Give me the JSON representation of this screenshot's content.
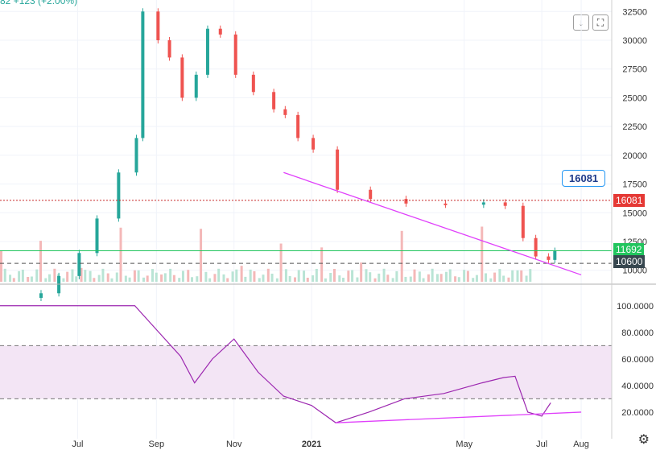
{
  "header": {
    "text": "82  +123 (+2.00%)"
  },
  "toolbar": {
    "arrow_down": "↓",
    "fit": "⛶"
  },
  "callout": {
    "value": "16081"
  },
  "price_labels": [
    {
      "value": "16081",
      "color": "#e53935"
    },
    {
      "value": "11692",
      "color": "#22c55e"
    },
    {
      "value": "10600",
      "color": "#37474f"
    }
  ],
  "chart_data": [
    {
      "type": "candlestick",
      "x": [
        "2020-06-01",
        "2020-06-15",
        "2020-07-01",
        "2020-07-15",
        "2020-08-01",
        "2020-08-15",
        "2020-08-20",
        "2020-09-01",
        "2020-09-10",
        "2020-09-20",
        "2020-10-01",
        "2020-10-10",
        "2020-10-20",
        "2020-11-01",
        "2020-11-15",
        "2020-12-01",
        "2020-12-10",
        "2020-12-20",
        "2021-01-01",
        "2021-01-20",
        "2021-02-15",
        "2021-03-15",
        "2021-04-15",
        "2021-05-15",
        "2021-06-01",
        "2021-06-15",
        "2021-06-25",
        "2021-07-05",
        "2021-07-10"
      ],
      "close": [
        8000,
        9500,
        11500,
        14500,
        18500,
        21500,
        32500,
        30000,
        28500,
        25000,
        27000,
        31000,
        30500,
        27000,
        25500,
        24000,
        23500,
        21500,
        20500,
        17000,
        16200,
        15800,
        15700,
        15900,
        15600,
        12800,
        11200,
        10900,
        11692
      ],
      "volume_ticks": [
        "0",
        "500",
        "1000",
        "1500"
      ],
      "xlabel": "",
      "ylabel": "",
      "x_ticks": [
        "Jul",
        "Sep",
        "Nov",
        "2021",
        "May",
        "Jul",
        "Aug"
      ],
      "y_ticks": [
        "10000",
        "12500",
        "15000",
        "17500",
        "20000",
        "22500",
        "25000",
        "27500",
        "30000",
        "32500"
      ],
      "ylim": [
        9000,
        33500
      ],
      "horizontal_lines": [
        16081,
        11692,
        10600
      ],
      "trendline": {
        "from": [
          "2020-12-10",
          18500
        ],
        "to": [
          "2021-08-01",
          9600
        ]
      }
    },
    {
      "type": "line",
      "name": "",
      "x": [
        "2020-05-01",
        "2020-08-15",
        "2020-09-01",
        "2020-09-20",
        "2020-10-01",
        "2020-10-15",
        "2020-11-01",
        "2020-11-20",
        "2020-12-10",
        "2021-01-01",
        "2021-01-20",
        "2021-02-15",
        "2021-03-15",
        "2021-04-15",
        "2021-05-15",
        "2021-06-01",
        "2021-06-10",
        "2021-06-20",
        "2021-07-01",
        "2021-07-08"
      ],
      "values": [
        100,
        100,
        82,
        62,
        42,
        60,
        75,
        50,
        32,
        25,
        12,
        20,
        30,
        34,
        42,
        46,
        47,
        20,
        17,
        27
      ],
      "y_ticks": [
        "20.0000",
        "40.0000",
        "60.0000",
        "80.0000",
        "100.0000"
      ],
      "ylim": [
        0,
        115
      ],
      "band": [
        30,
        70
      ],
      "trendline": {
        "from": [
          "2021-01-20",
          12
        ],
        "to": [
          "2021-08-01",
          20
        ]
      }
    }
  ]
}
